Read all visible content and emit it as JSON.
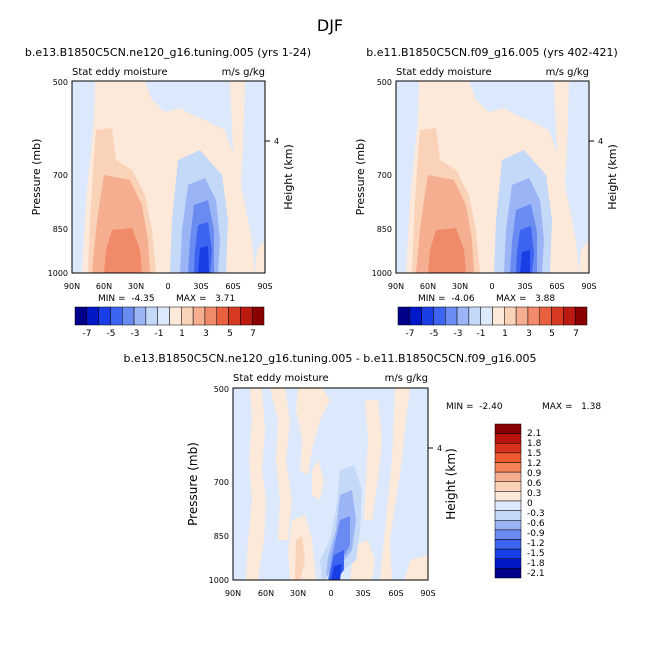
{
  "figure_title": "DJF",
  "chart_data": [
    {
      "type": "heatmap",
      "title": "b.e13.B1850C5CN.ne120_g16.tuning.005 (yrs 1-24)",
      "left_label": "Stat eddy moisture",
      "right_label": "m/s g/kg",
      "xlabel": "",
      "ylabel": "Pressure (mb)",
      "y2label": "Height (km)",
      "x_ticks": [
        "90N",
        "60N",
        "30N",
        "0",
        "30S",
        "60S",
        "90S"
      ],
      "y_ticks": [
        "500",
        "700",
        "850",
        "1000"
      ],
      "y2_ticks": [
        "4"
      ],
      "min_text": "MIN =  -4.35",
      "max_text": "MAX =   3.71",
      "min": -4.35,
      "max": 3.71,
      "colorbar_labels": [
        "-7",
        "-5",
        "-3",
        "-1",
        "1",
        "3",
        "5",
        "7"
      ]
    },
    {
      "type": "heatmap",
      "title": "b.e11.B1850C5CN.f09_g16.005 (yrs 402-421)",
      "left_label": "Stat eddy moisture",
      "right_label": "m/s g/kg",
      "xlabel": "",
      "ylabel": "Pressure (mb)",
      "y2label": "Height (km)",
      "x_ticks": [
        "90N",
        "60N",
        "30N",
        "0",
        "30S",
        "60S",
        "90S"
      ],
      "y_ticks": [
        "500",
        "700",
        "850",
        "1000"
      ],
      "y2_ticks": [
        "4"
      ],
      "min_text": "MIN =  -4.06",
      "max_text": "MAX =   3.88",
      "min": -4.06,
      "max": 3.88,
      "colorbar_labels": [
        "-7",
        "-5",
        "-3",
        "-1",
        "1",
        "3",
        "5",
        "7"
      ]
    },
    {
      "type": "heatmap",
      "title": "b.e13.B1850C5CN.ne120_g16.tuning.005 - b.e11.B1850C5CN.f09_g16.005",
      "left_label": "Stat eddy moisture",
      "right_label": "m/s g/kg",
      "xlabel": "",
      "ylabel": "Pressure (mb)",
      "y2label": "Height (km)",
      "x_ticks": [
        "90N",
        "60N",
        "30N",
        "0",
        "30S",
        "60S",
        "90S"
      ],
      "y_ticks": [
        "500",
        "700",
        "850",
        "1000"
      ],
      "y2_ticks": [
        "4"
      ],
      "min_text": "MIN =  -2.40",
      "max_text": "MAX =   1.38",
      "min": -2.4,
      "max": 1.38,
      "colorbar_labels": [
        "2.1",
        "1.8",
        "1.5",
        "1.2",
        "0.9",
        "0.6",
        "0.3",
        "0",
        "-0.3",
        "-0.6",
        "-0.9",
        "-1.2",
        "-1.5",
        "-1.8",
        "-2.1"
      ]
    }
  ],
  "colors": {
    "diverging": [
      "#00008b",
      "#0018c8",
      "#1a3ee6",
      "#3c64f0",
      "#6a8cf2",
      "#9ab4f6",
      "#c4d8f8",
      "#dce8fb",
      "#fde9d9",
      "#fad2b8",
      "#f6ae90",
      "#f08a68",
      "#e8603e",
      "#d63a20",
      "#bb1a10",
      "#8b0000"
    ],
    "difference": [
      "#8b0000",
      "#b71410",
      "#d8321c",
      "#ef5a30",
      "#f48458",
      "#f6ae90",
      "#fad2b8",
      "#fde9d9",
      "#dce8fb",
      "#c4d8f8",
      "#9ab4f6",
      "#6a8cf2",
      "#3c64f0",
      "#1a3ee6",
      "#0018c8",
      "#00008b"
    ]
  }
}
